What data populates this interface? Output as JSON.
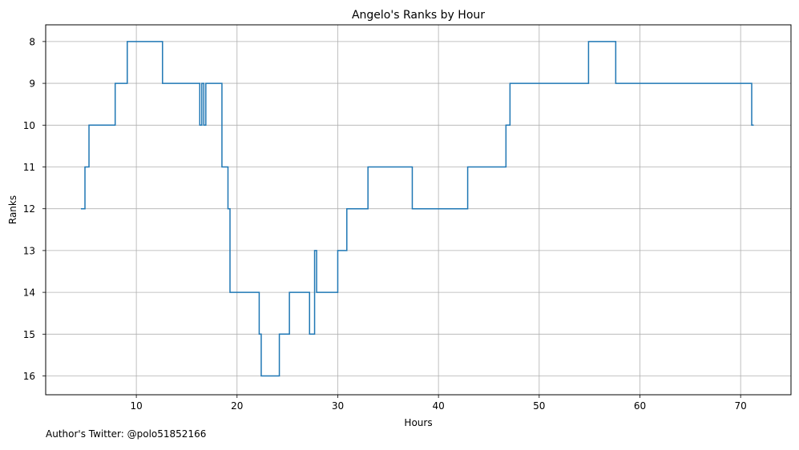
{
  "chart_data": {
    "type": "line",
    "title": "Angelo's Ranks by Hour",
    "xlabel": "Hours",
    "ylabel": "Ranks",
    "xlim": [
      1,
      75
    ],
    "ylim": [
      16.45,
      7.6
    ],
    "y_inverted": true,
    "xticks": [
      10,
      20,
      30,
      40,
      50,
      60,
      70
    ],
    "yticks": [
      8,
      9,
      10,
      11,
      12,
      13,
      14,
      15,
      16
    ],
    "grid": true,
    "line_style": "step-post",
    "series": [
      {
        "color": "#1f77b4",
        "x": [
          4.5,
          4.9,
          5.3,
          7.9,
          9.1,
          12.6,
          16.3,
          16.5,
          16.7,
          16.9,
          18.5,
          19.1,
          19.3,
          22.2,
          22.4,
          24.2,
          25.2,
          27.2,
          27.7,
          27.9,
          30.0,
          30.9,
          33.0,
          37.4,
          42.9,
          46.7,
          47.1,
          54.9,
          57.6,
          71.1,
          71.3
        ],
        "y": [
          12,
          11,
          10,
          9,
          8,
          9,
          10,
          9,
          10,
          9,
          11,
          12,
          14,
          15,
          16,
          15,
          14,
          15,
          13,
          14,
          13,
          12,
          11,
          12,
          11,
          10,
          9,
          8,
          9,
          10,
          10
        ]
      }
    ]
  },
  "footer": {
    "note": "Author's Twitter: @polo51852166"
  }
}
